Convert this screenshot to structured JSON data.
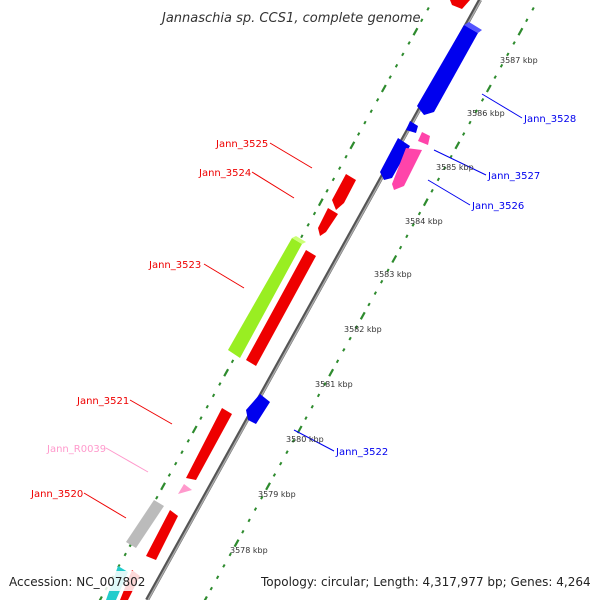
{
  "title": "Jannaschia sp. CCS1, complete genome",
  "footer": {
    "accession": "Accession: NC_007802",
    "topology": "Topology: circular; Length: 4,317,977 bp; Genes: 4,264"
  },
  "colors": {
    "backbone": "#888888",
    "ticks": "#2e8b2e",
    "blue": "#0000ee",
    "red": "#ee0000",
    "pink": "#ff44aa",
    "lightpink": "#ff99cc",
    "green": "#99ee22",
    "gray": "#bbbbbb",
    "cyan": "#22cccc"
  },
  "kbp_ticks": [
    "3578 kbp",
    "3579 kbp",
    "3580 kbp",
    "3581 kbp",
    "3582 kbp",
    "3583 kbp",
    "3584 kbp",
    "3585 kbp",
    "3586 kbp",
    "3587 kbp"
  ],
  "genes": [
    {
      "label": "Jann_3528",
      "color": "blue"
    },
    {
      "label": "Jann_3527",
      "color": "blue"
    },
    {
      "label": "Jann_3526",
      "color": "pink"
    },
    {
      "label": "Jann_3525",
      "color": "red"
    },
    {
      "label": "Jann_3524",
      "color": "red"
    },
    {
      "label": "Jann_3523",
      "color": "red"
    },
    {
      "label": "Jann_3522",
      "color": "blue"
    },
    {
      "label": "Jann_3521",
      "color": "red"
    },
    {
      "label": "Jann_R0039",
      "color": "lightpink"
    },
    {
      "label": "Jann_3520",
      "color": "red"
    }
  ]
}
